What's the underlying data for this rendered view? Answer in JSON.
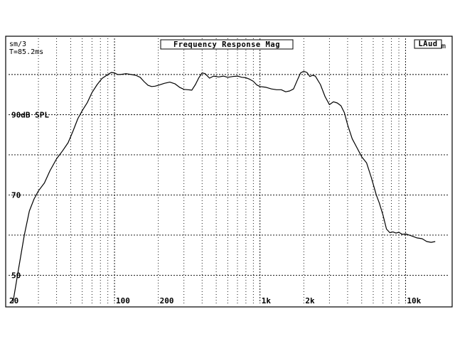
{
  "header": {
    "smoothing": "sm/3",
    "time_window": "T=85.2ms",
    "channel": "LAud",
    "channel_suffix": "m"
  },
  "chart_data": {
    "type": "line",
    "title": "Frequency Response Mag",
    "x_scale": "log",
    "xlim": [
      20,
      20000
    ],
    "ylim": [
      43,
      109
    ],
    "grid": true,
    "x_tick_labels": [
      {
        "value": 20,
        "label": "20"
      },
      {
        "value": 100,
        "label": "100"
      },
      {
        "value": 200,
        "label": "200"
      },
      {
        "value": 1000,
        "label": "1k"
      },
      {
        "value": 2000,
        "label": "2k"
      },
      {
        "value": 10000,
        "label": "10k"
      }
    ],
    "y_tick_labels": [
      {
        "value": 90,
        "label": "90dB SPL"
      },
      {
        "value": 70,
        "label": "70"
      },
      {
        "value": 50,
        "label": "50"
      }
    ],
    "y_gridlines": [
      50,
      60,
      70,
      80,
      90,
      100
    ],
    "series": [
      {
        "points": [
          [
            20,
            43
          ],
          [
            22,
            52
          ],
          [
            24,
            60
          ],
          [
            26,
            66
          ],
          [
            28,
            69
          ],
          [
            30,
            71
          ],
          [
            33,
            73
          ],
          [
            36,
            76
          ],
          [
            40,
            79
          ],
          [
            44,
            81
          ],
          [
            48,
            83
          ],
          [
            52,
            86
          ],
          [
            56,
            89
          ],
          [
            60,
            91
          ],
          [
            65,
            93
          ],
          [
            70,
            95.5
          ],
          [
            76,
            97.5
          ],
          [
            82,
            99
          ],
          [
            90,
            100
          ],
          [
            95,
            100.5
          ],
          [
            100,
            100.4
          ],
          [
            105,
            100
          ],
          [
            110,
            100
          ],
          [
            120,
            100.2
          ],
          [
            130,
            100
          ],
          [
            140,
            99.8
          ],
          [
            150,
            99.3
          ],
          [
            160,
            98.2
          ],
          [
            170,
            97.3
          ],
          [
            180,
            97
          ],
          [
            190,
            97.1
          ],
          [
            200,
            97.3
          ],
          [
            220,
            97.8
          ],
          [
            240,
            98.1
          ],
          [
            260,
            97.7
          ],
          [
            280,
            96.8
          ],
          [
            300,
            96.3
          ],
          [
            320,
            96.2
          ],
          [
            340,
            96.1
          ],
          [
            360,
            97.5
          ],
          [
            380,
            99.2
          ],
          [
            400,
            100.4
          ],
          [
            420,
            100.2
          ],
          [
            450,
            99.1
          ],
          [
            480,
            99.6
          ],
          [
            520,
            99.4
          ],
          [
            560,
            99.6
          ],
          [
            600,
            99.3
          ],
          [
            650,
            99.5
          ],
          [
            700,
            99.6
          ],
          [
            750,
            99.3
          ],
          [
            800,
            99.2
          ],
          [
            850,
            98.8
          ],
          [
            900,
            98.3
          ],
          [
            950,
            97.4
          ],
          [
            1000,
            97
          ],
          [
            1100,
            96.8
          ],
          [
            1200,
            96.4
          ],
          [
            1300,
            96.2
          ],
          [
            1400,
            96.2
          ],
          [
            1500,
            95.7
          ],
          [
            1600,
            95.9
          ],
          [
            1700,
            96.4
          ],
          [
            1800,
            98.5
          ],
          [
            1900,
            100.4
          ],
          [
            2000,
            100.8
          ],
          [
            2100,
            100.5
          ],
          [
            2200,
            99.5
          ],
          [
            2300,
            99.8
          ],
          [
            2400,
            99.6
          ],
          [
            2600,
            97.5
          ],
          [
            2800,
            94.5
          ],
          [
            3000,
            92.5
          ],
          [
            3200,
            93.2
          ],
          [
            3400,
            92.9
          ],
          [
            3600,
            92.2
          ],
          [
            3800,
            90.5
          ],
          [
            4000,
            87.5
          ],
          [
            4300,
            84
          ],
          [
            4600,
            82
          ],
          [
            5000,
            79.5
          ],
          [
            5400,
            78
          ],
          [
            5800,
            74.5
          ],
          [
            6300,
            70
          ],
          [
            6600,
            68
          ],
          [
            7000,
            65
          ],
          [
            7400,
            61.5
          ],
          [
            7800,
            60.6
          ],
          [
            8200,
            60.8
          ],
          [
            8600,
            60.5
          ],
          [
            9000,
            60.7
          ],
          [
            9500,
            60.2
          ],
          [
            10000,
            60.3
          ],
          [
            11000,
            59.8
          ],
          [
            12000,
            59.3
          ],
          [
            13000,
            59.1
          ],
          [
            14000,
            58.4
          ],
          [
            15000,
            58.2
          ],
          [
            16000,
            58.4
          ]
        ]
      }
    ]
  }
}
